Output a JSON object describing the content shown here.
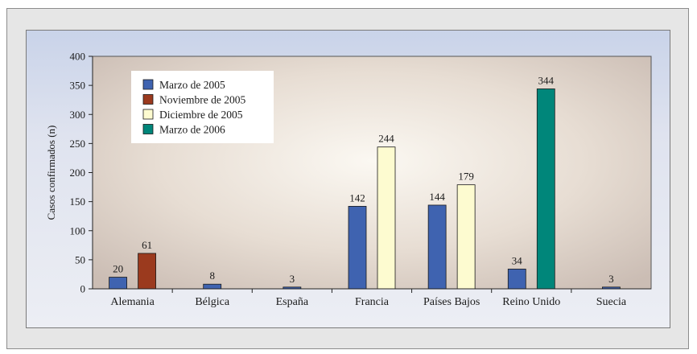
{
  "chart_data": {
    "type": "bar",
    "title": "",
    "xlabel": "",
    "ylabel": "Casos confirmados (n)",
    "ylim": [
      0,
      400
    ],
    "yticks": [
      0,
      50,
      100,
      150,
      200,
      250,
      300,
      350,
      400
    ],
    "categories": [
      "Alemania",
      "Bélgica",
      "España",
      "Francia",
      "Países Bajos",
      "Reino Unido",
      "Suecia"
    ],
    "series": [
      {
        "name": "Marzo de 2005",
        "color": "#3f63b0",
        "values": [
          20,
          8,
          3,
          142,
          144,
          34,
          3
        ]
      },
      {
        "name": "Noviembre de 2005",
        "color": "#9b3a1e",
        "values": [
          61,
          null,
          null,
          null,
          null,
          null,
          null
        ]
      },
      {
        "name": "Diciembre de 2005",
        "color": "#fdfbd0",
        "values": [
          null,
          null,
          null,
          244,
          179,
          null,
          null
        ]
      },
      {
        "name": "Marzo de 2006",
        "color": "#00867a",
        "values": [
          null,
          null,
          null,
          null,
          null,
          344,
          null
        ]
      }
    ],
    "legend_position": "top-left",
    "grid": false
  }
}
